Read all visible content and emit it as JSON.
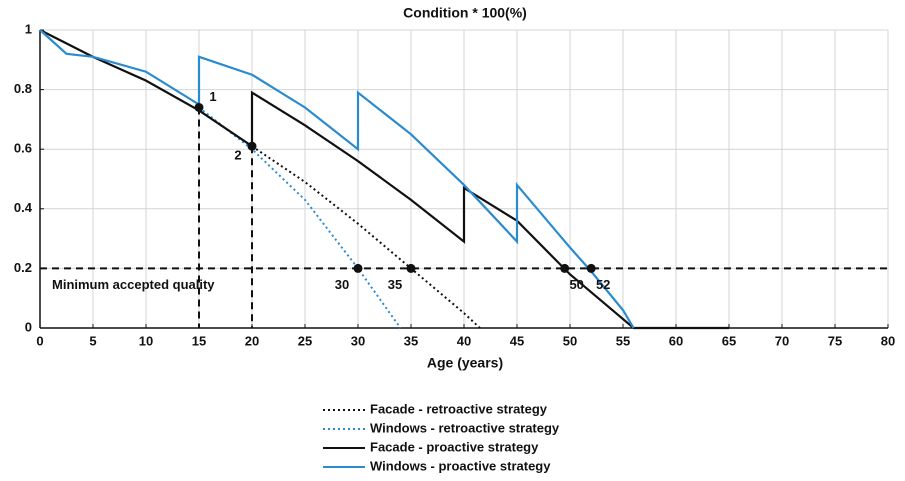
{
  "chart_data": {
    "type": "line",
    "title": "Condition * 100(%)",
    "xlabel": "Age (years)",
    "xlim": [
      0,
      80
    ],
    "ylim": [
      0,
      1
    ],
    "xticks": [
      0,
      5,
      10,
      15,
      20,
      25,
      30,
      35,
      40,
      45,
      50,
      55,
      60,
      65,
      70,
      75,
      80
    ],
    "yticks": [
      0,
      0.2,
      0.4,
      0.6,
      0.8,
      1
    ],
    "grid": true,
    "legend": "bottom",
    "series": [
      {
        "name": "Facade - retroactive strategy",
        "color": "#111111",
        "style": "dotted",
        "x": [
          20,
          25,
          30,
          35,
          40,
          41.5
        ],
        "values": [
          0.61,
          0.49,
          0.35,
          0.2,
          0.05,
          0
        ]
      },
      {
        "name": "Windows - retroactive strategy",
        "color": "#2a8bd0",
        "style": "dotted",
        "x": [
          15,
          20,
          25,
          30,
          34
        ],
        "values": [
          0.74,
          0.6,
          0.43,
          0.2,
          0
        ]
      },
      {
        "name": "Facade - proactive strategy",
        "color": "#111111",
        "style": "solid",
        "x": [
          0,
          5,
          10,
          15,
          20,
          20,
          25,
          30,
          35,
          40,
          40,
          45,
          50,
          55,
          56,
          65
        ],
        "values": [
          1,
          0.91,
          0.83,
          0.73,
          0.61,
          0.79,
          0.68,
          0.56,
          0.43,
          0.29,
          0.47,
          0.36,
          0.18,
          0.03,
          0,
          0
        ]
      },
      {
        "name": "Windows - proactive strategy",
        "color": "#2a8bd0",
        "style": "solid",
        "x": [
          0,
          2.5,
          5,
          10,
          15,
          15,
          20,
          25,
          30,
          30,
          35,
          40,
          45,
          45,
          50,
          52,
          55,
          56
        ],
        "values": [
          1,
          0.92,
          0.91,
          0.86,
          0.75,
          0.91,
          0.85,
          0.74,
          0.6,
          0.79,
          0.65,
          0.48,
          0.29,
          0.48,
          0.27,
          0.19,
          0.06,
          0
        ]
      }
    ],
    "threshold": {
      "value": 0.2,
      "label": "Minimum accepted quality"
    },
    "points": [
      {
        "x": 15,
        "y": 0.74,
        "label": "1",
        "drop": true
      },
      {
        "x": 20,
        "y": 0.61,
        "label": "2",
        "drop": true
      },
      {
        "x": 30,
        "y": 0.2,
        "label": "30",
        "drop": false
      },
      {
        "x": 35,
        "y": 0.2,
        "label": "35",
        "drop": false
      },
      {
        "x": 49.5,
        "y": 0.2,
        "label": "50",
        "drop": false
      },
      {
        "x": 52,
        "y": 0.2,
        "label": "52",
        "drop": false
      }
    ]
  }
}
